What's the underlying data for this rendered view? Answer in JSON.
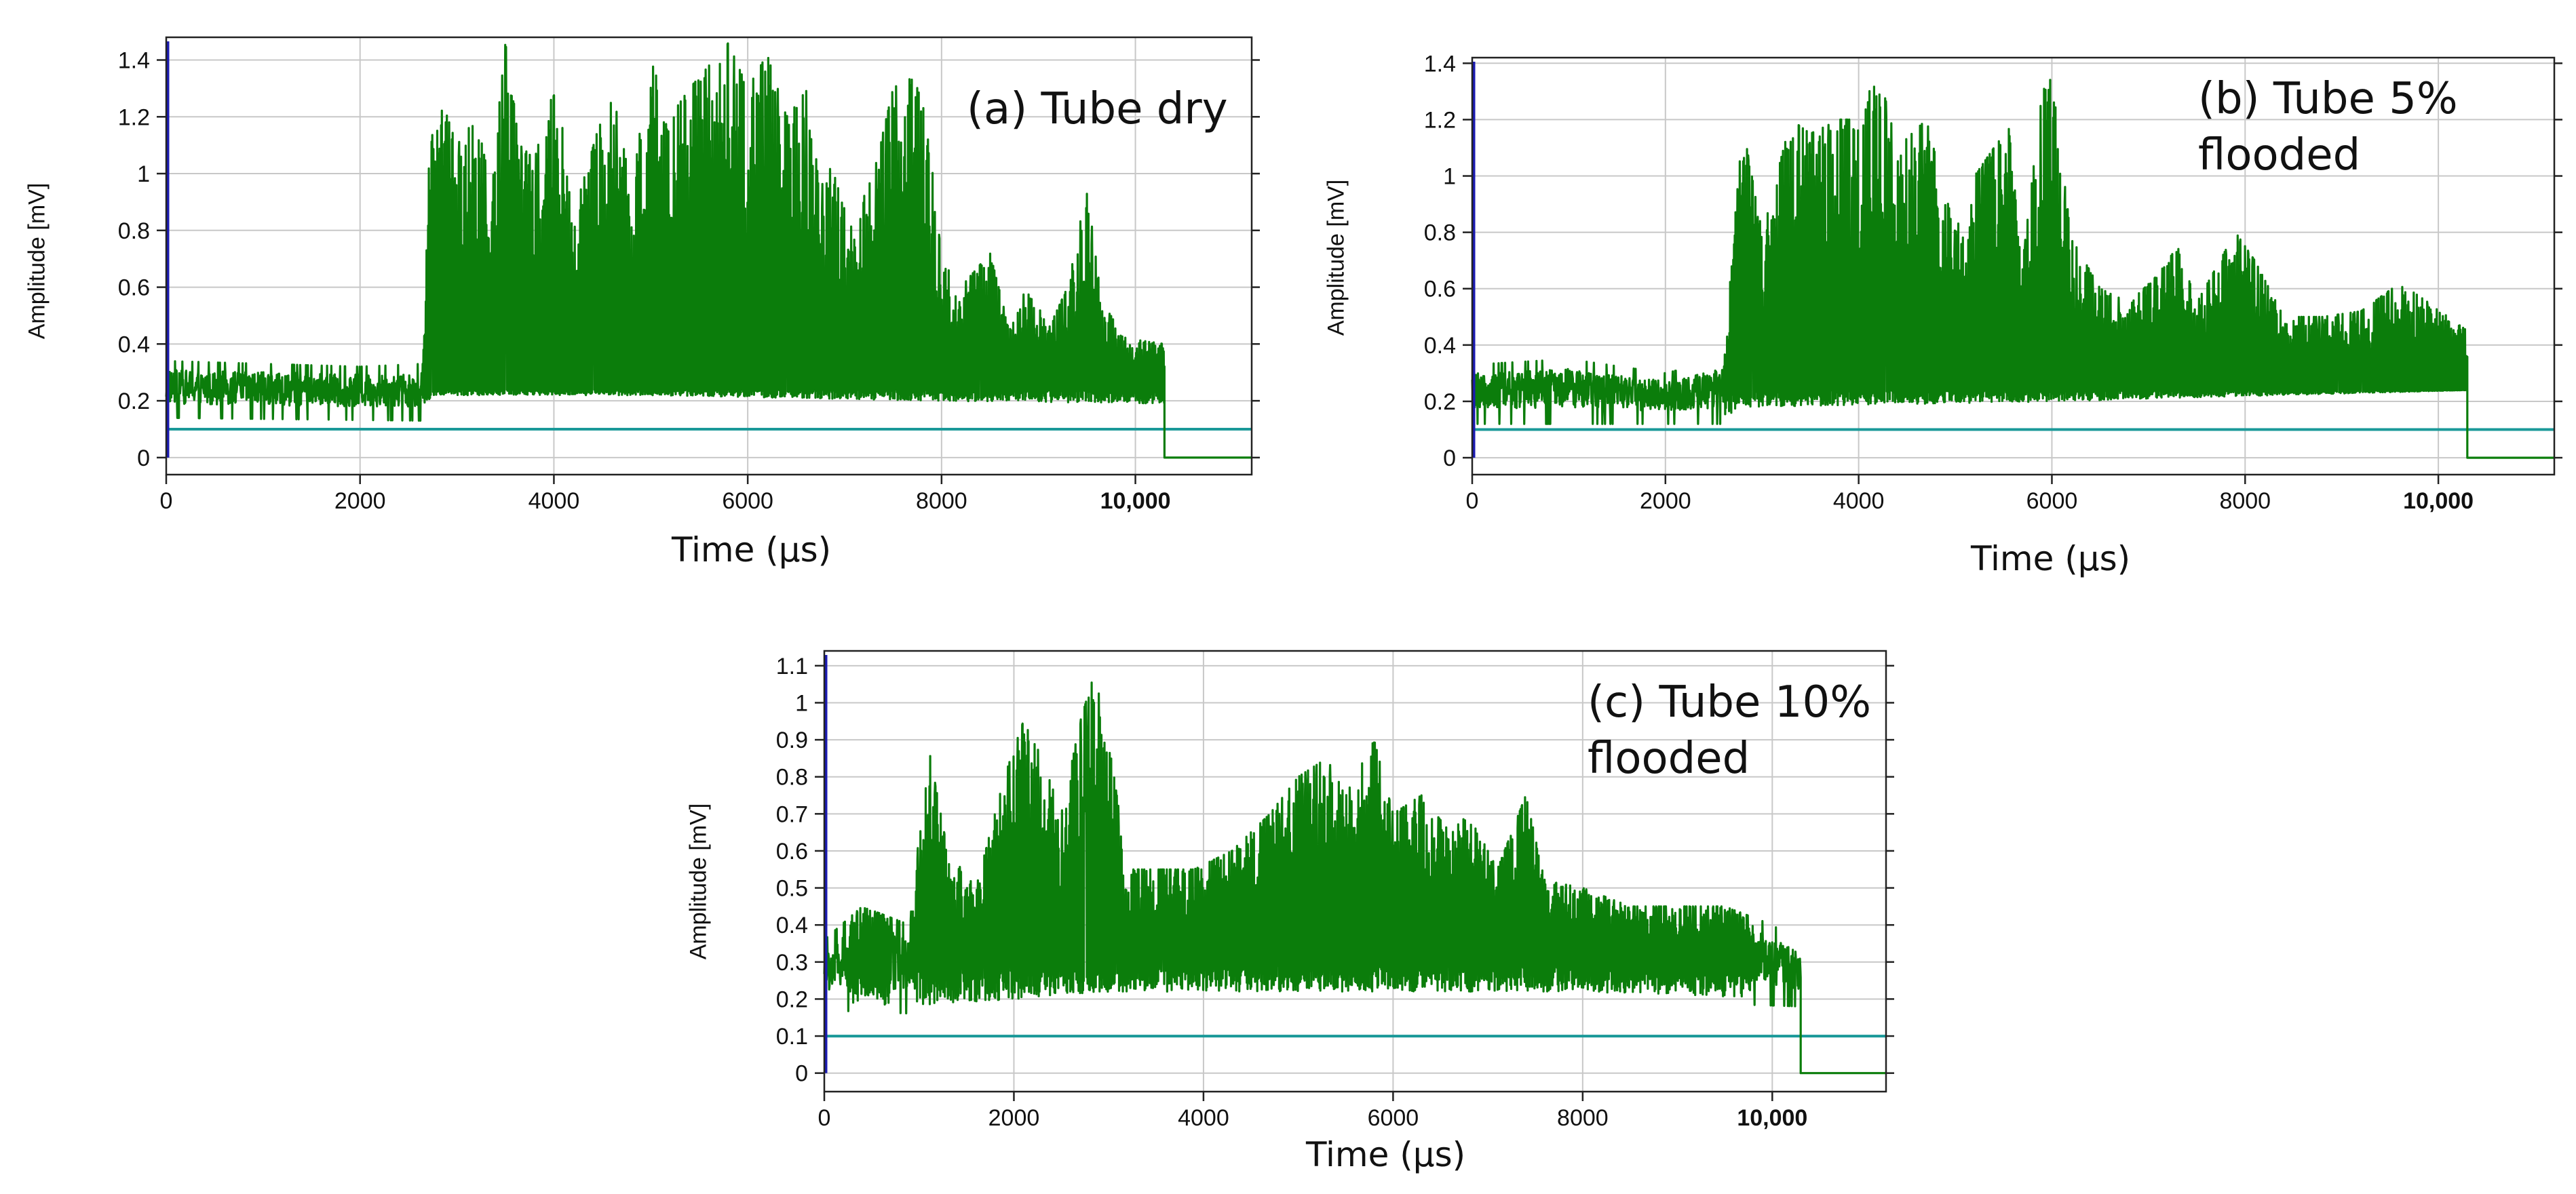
{
  "chart_data": [
    {
      "type": "line",
      "id": "a",
      "annotation": "(a) Tube dry",
      "xlabel": "Time (µs)",
      "ylabel": "Amplitude [mV]",
      "xlim": [
        0,
        11200
      ],
      "ylim": [
        -0.06,
        1.48
      ],
      "x_ticks": [
        0,
        2000,
        4000,
        6000,
        8000,
        10000
      ],
      "x_tick_labels": [
        "0",
        "2000",
        "4000",
        "6000",
        "8000",
        "10,000"
      ],
      "y_ticks": [
        0,
        0.2,
        0.4,
        0.6,
        0.8,
        1,
        1.2,
        1.4
      ],
      "y_tick_labels": [
        "0",
        "0.2",
        "0.4",
        "0.6",
        "0.8",
        "1",
        "1.2",
        "1.4"
      ],
      "grid": true,
      "threshold_mV": 0.1,
      "signal_end_us": 10300,
      "series": [
        {
          "name": "AE signal",
          "color": "#0b7d0b",
          "baseline_mV": 0.22,
          "noise_mV": 0.05,
          "upper_envelope": [
            [
              0,
              0.34
            ],
            [
              1000,
              0.33
            ],
            [
              2000,
              0.32
            ],
            [
              2650,
              0.33
            ],
            [
              2700,
              1.0
            ],
            [
              2800,
              1.3
            ],
            [
              3000,
              1.1
            ],
            [
              3200,
              1.2
            ],
            [
              3350,
              0.95
            ],
            [
              3500,
              1.46
            ],
            [
              3650,
              1.1
            ],
            [
              3800,
              1.05
            ],
            [
              3950,
              1.25
            ],
            [
              4050,
              1.3
            ],
            [
              4200,
              0.85
            ],
            [
              4450,
              1.15
            ],
            [
              4600,
              1.3
            ],
            [
              4800,
              0.95
            ],
            [
              5000,
              1.4
            ],
            [
              5200,
              1.2
            ],
            [
              5400,
              1.3
            ],
            [
              5600,
              1.38
            ],
            [
              5800,
              1.46
            ],
            [
              6000,
              1.3
            ],
            [
              6200,
              1.42
            ],
            [
              6400,
              1.2
            ],
            [
              6600,
              1.3
            ],
            [
              6750,
              0.95
            ],
            [
              6900,
              1.05
            ],
            [
              7050,
              0.8
            ],
            [
              7300,
              1.0
            ],
            [
              7500,
              1.3
            ],
            [
              7700,
              1.35
            ],
            [
              7850,
              1.2
            ],
            [
              8000,
              0.7
            ],
            [
              8200,
              0.6
            ],
            [
              8500,
              0.72
            ],
            [
              8700,
              0.45
            ],
            [
              8900,
              0.62
            ],
            [
              9100,
              0.45
            ],
            [
              9300,
              0.6
            ],
            [
              9500,
              0.95
            ],
            [
              9650,
              0.55
            ],
            [
              9900,
              0.42
            ],
            [
              10300,
              0.4
            ]
          ],
          "lower_envelope": [
            [
              0,
              0.14
            ],
            [
              2650,
              0.13
            ],
            [
              2750,
              0.2
            ],
            [
              5000,
              0.2
            ],
            [
              8000,
              0.18
            ],
            [
              10300,
              0.17
            ]
          ]
        },
        {
          "name": "Threshold",
          "color": "#1a9999",
          "value_mV": 0.1
        }
      ]
    },
    {
      "type": "line",
      "id": "b",
      "annotation": "(b) Tube 5%\nflooded",
      "xlabel": "Time (µs)",
      "ylabel": "Amplitude [mV]",
      "xlim": [
        0,
        11200
      ],
      "ylim": [
        -0.06,
        1.42
      ],
      "x_ticks": [
        0,
        2000,
        4000,
        6000,
        8000,
        10000
      ],
      "x_tick_labels": [
        "0",
        "2000",
        "4000",
        "6000",
        "8000",
        "10,000"
      ],
      "y_ticks": [
        0,
        0.2,
        0.4,
        0.6,
        0.8,
        1,
        1.2,
        1.4
      ],
      "y_tick_labels": [
        "0",
        "0.2",
        "0.4",
        "0.6",
        "0.8",
        "1",
        "1.2",
        "1.4"
      ],
      "grid": true,
      "threshold_mV": 0.1,
      "signal_end_us": 10300,
      "series": [
        {
          "name": "AE signal",
          "color": "#0b7d0b",
          "baseline_mV": 0.22,
          "noise_mV": 0.05,
          "upper_envelope": [
            [
              0,
              0.33
            ],
            [
              1000,
              0.35
            ],
            [
              2000,
              0.3
            ],
            [
              2600,
              0.35
            ],
            [
              2800,
              1.18
            ],
            [
              3000,
              0.8
            ],
            [
              3300,
              1.2
            ],
            [
              3500,
              1.15
            ],
            [
              3800,
              1.2
            ],
            [
              4000,
              1.2
            ],
            [
              4200,
              1.38
            ],
            [
              4400,
              1.1
            ],
            [
              4700,
              1.2
            ],
            [
              5000,
              0.8
            ],
            [
              5200,
              1.0
            ],
            [
              5400,
              1.1
            ],
            [
              5550,
              1.18
            ],
            [
              5700,
              0.7
            ],
            [
              5900,
              1.3
            ],
            [
              6000,
              1.35
            ],
            [
              6200,
              0.78
            ],
            [
              6500,
              0.6
            ],
            [
              6800,
              0.55
            ],
            [
              7100,
              0.65
            ],
            [
              7300,
              0.75
            ],
            [
              7500,
              0.55
            ],
            [
              7900,
              0.8
            ],
            [
              8100,
              0.7
            ],
            [
              8400,
              0.5
            ],
            [
              8800,
              0.5
            ],
            [
              9200,
              0.52
            ],
            [
              9600,
              0.62
            ],
            [
              9900,
              0.55
            ],
            [
              10300,
              0.45
            ]
          ],
          "lower_envelope": [
            [
              0,
              0.12
            ],
            [
              2600,
              0.12
            ],
            [
              2800,
              0.16
            ],
            [
              6000,
              0.18
            ],
            [
              10300,
              0.22
            ]
          ]
        },
        {
          "name": "Threshold",
          "color": "#1a9999",
          "value_mV": 0.1
        }
      ]
    },
    {
      "type": "line",
      "id": "c",
      "annotation": "(c) Tube 10%\nflooded",
      "xlabel": "Time (µs)",
      "ylabel": "Amplitude [mV]",
      "xlim": [
        0,
        11200
      ],
      "ylim": [
        -0.05,
        1.14
      ],
      "x_ticks": [
        0,
        2000,
        4000,
        6000,
        8000,
        10000
      ],
      "x_tick_labels": [
        "0",
        "2000",
        "4000",
        "6000",
        "8000",
        "10,000"
      ],
      "y_ticks": [
        0,
        0.1,
        0.2,
        0.3,
        0.4,
        0.5,
        0.6,
        0.7,
        0.8,
        0.9,
        1,
        1.1
      ],
      "y_tick_labels": [
        "0",
        "0.1",
        "0.2",
        "0.3",
        "0.4",
        "0.5",
        "0.6",
        "0.7",
        "0.8",
        "0.9",
        "1",
        "1.1"
      ],
      "grid": true,
      "threshold_mV": 0.1,
      "signal_end_us": 10300,
      "series": [
        {
          "name": "AE signal",
          "color": "#0b7d0b",
          "baseline_mV": 0.27,
          "noise_mV": 0.05,
          "upper_envelope": [
            [
              0,
              0.36
            ],
            [
              400,
              0.45
            ],
            [
              900,
              0.4
            ],
            [
              1100,
              0.88
            ],
            [
              1300,
              0.6
            ],
            [
              1600,
              0.5
            ],
            [
              1900,
              0.8
            ],
            [
              2100,
              0.95
            ],
            [
              2300,
              0.85
            ],
            [
              2500,
              0.7
            ],
            [
              2700,
              0.95
            ],
            [
              2850,
              1.08
            ],
            [
              3000,
              0.9
            ],
            [
              3200,
              0.55
            ],
            [
              3500,
              0.55
            ],
            [
              3900,
              0.55
            ],
            [
              4300,
              0.6
            ],
            [
              4700,
              0.7
            ],
            [
              5000,
              0.8
            ],
            [
              5300,
              0.85
            ],
            [
              5500,
              0.75
            ],
            [
              5800,
              0.9
            ],
            [
              6000,
              0.7
            ],
            [
              6300,
              0.75
            ],
            [
              6600,
              0.65
            ],
            [
              6800,
              0.7
            ],
            [
              7100,
              0.55
            ],
            [
              7400,
              0.75
            ],
            [
              7600,
              0.52
            ],
            [
              8000,
              0.5
            ],
            [
              8500,
              0.45
            ],
            [
              9000,
              0.45
            ],
            [
              9500,
              0.45
            ],
            [
              10000,
              0.4
            ],
            [
              10300,
              0.35
            ]
          ],
          "lower_envelope": [
            [
              0,
              0.17
            ],
            [
              1000,
              0.16
            ],
            [
              2000,
              0.18
            ],
            [
              3000,
              0.2
            ],
            [
              6000,
              0.2
            ],
            [
              8000,
              0.2
            ],
            [
              10300,
              0.18
            ]
          ]
        },
        {
          "name": "Threshold",
          "color": "#1a9999",
          "value_mV": 0.1
        }
      ]
    }
  ]
}
